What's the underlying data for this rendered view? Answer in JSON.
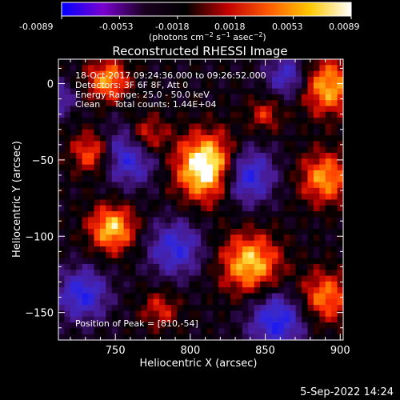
{
  "colorbar": {
    "ticks": [
      "-0.0089",
      "-0.0053",
      "-0.0018",
      "0.0018",
      "0.0053",
      "0.0089"
    ],
    "min": -0.0089,
    "max": 0.0089,
    "colors": [
      "#0000ff",
      "#7a00d0",
      "#1a0020",
      "#000000",
      "#c00000",
      "#ff5a00",
      "#ffc800",
      "#ffffff"
    ]
  },
  "chart_data": {
    "type": "heatmap",
    "title": "Reconstructed RHESSI Image",
    "xlabel": "Heliocentric X (arcsec)",
    "ylabel": "Heliocentric Y (arcsec)",
    "xlim": [
      712,
      902
    ],
    "ylim": [
      -168,
      16
    ],
    "xticks": [
      750,
      800,
      850,
      900
    ],
    "yticks": [
      0,
      -50,
      -100,
      -150
    ],
    "peak": [
      810,
      -54
    ],
    "sources": [
      {
        "x": 812,
        "y": -55,
        "amp": 1.0,
        "w": 15
      },
      {
        "x": 770,
        "y": -35,
        "amp": 0.65,
        "w": 10
      },
      {
        "x": 745,
        "y": 2,
        "amp": 0.6,
        "w": 10
      },
      {
        "x": 735,
        "y": -45,
        "amp": 0.55,
        "w": 10
      },
      {
        "x": 748,
        "y": -95,
        "amp": 0.7,
        "w": 11
      },
      {
        "x": 892,
        "y": -2,
        "amp": 0.65,
        "w": 13
      },
      {
        "x": 890,
        "y": -62,
        "amp": 0.6,
        "w": 12
      },
      {
        "x": 840,
        "y": -118,
        "amp": 0.7,
        "w": 14
      },
      {
        "x": 890,
        "y": -140,
        "amp": 0.55,
        "w": 12
      },
      {
        "x": 850,
        "y": -20,
        "amp": 0.35,
        "w": 8
      },
      {
        "x": 780,
        "y": -148,
        "amp": 0.35,
        "w": 9
      }
    ],
    "negatives": [
      {
        "x": 760,
        "y": -45,
        "amp": 0.7,
        "w": 14
      },
      {
        "x": 836,
        "y": -60,
        "amp": 0.75,
        "w": 13
      },
      {
        "x": 790,
        "y": -108,
        "amp": 0.55,
        "w": 13
      },
      {
        "x": 858,
        "y": -155,
        "amp": 0.65,
        "w": 13
      },
      {
        "x": 728,
        "y": -138,
        "amp": 0.6,
        "w": 12
      },
      {
        "x": 865,
        "y": 5,
        "amp": 0.5,
        "w": 10
      },
      {
        "x": 712,
        "y": -10,
        "amp": 0.4,
        "w": 8
      }
    ]
  },
  "annotations": {
    "line1": "18-Oct-2017 09:24:36.000 to 09:26:52.000",
    "line2": "Detectors: 3F 6F 8F, Att 0",
    "line3": "Energy Range: 25.0 - 50.0 keV",
    "line4": "Clean     Total counts: 1.44E+04",
    "peak": "Position of Peak = [810,-54]"
  },
  "footer": {
    "timestamp": "5-Sep-2022 14:24"
  }
}
